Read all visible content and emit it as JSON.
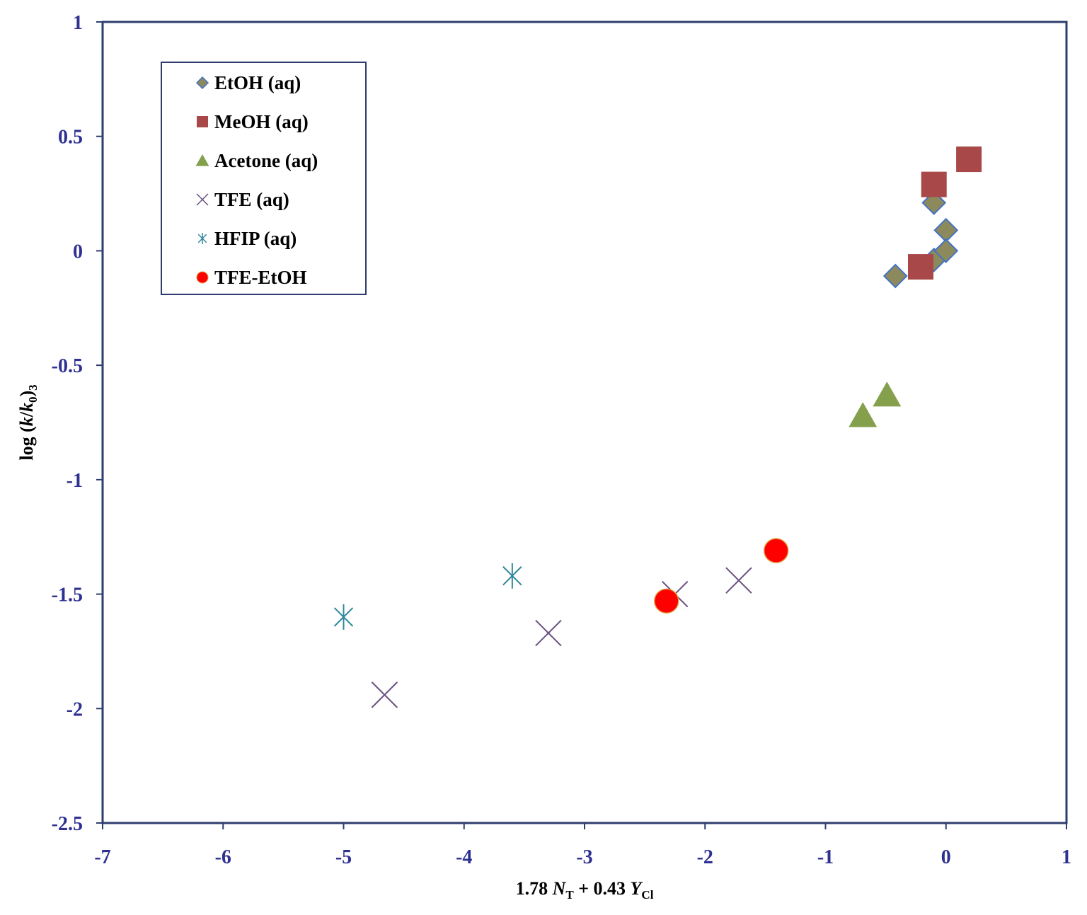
{
  "chart_data": {
    "type": "scatter",
    "title": "",
    "xlabel": {
      "prefix": "1.78 ",
      "var1": "N",
      "sub1": "T",
      "mid": " + 0.43 ",
      "var2": "Y",
      "sub2": "Cl"
    },
    "ylabel": {
      "prefix": "log (",
      "var1": "k",
      "slash": "/",
      "var2": "k",
      "sub2": "0",
      "suffix": ")",
      "sub3": "3"
    },
    "xlim": [
      -7,
      1
    ],
    "ylim": [
      -2.5,
      1
    ],
    "xticks": [
      -7,
      -6,
      -5,
      -4,
      -3,
      -2,
      -1,
      0,
      1
    ],
    "yticks": [
      1,
      0.5,
      0,
      -0.5,
      -1,
      -1.5,
      -2,
      -2.5
    ],
    "xtick_labels": [
      "-7",
      "-6",
      "-5",
      "-4",
      "-3",
      "-2",
      "-1",
      "0",
      "1"
    ],
    "ytick_labels": [
      "1",
      "0.5",
      "0",
      "-0.5",
      "-1",
      "-1.5",
      "-2",
      "-2.5"
    ],
    "grid": false,
    "legend_position": "top-left",
    "series": [
      {
        "name": "EtOH (aq)",
        "marker": "diamond",
        "color": "#8C8A5C",
        "edge": "#4472C4",
        "points": [
          [
            -0.1,
            0.21
          ],
          [
            -0.1,
            -0.04
          ],
          [
            0.0,
            0.09
          ],
          [
            0.0,
            0.0
          ],
          [
            -0.42,
            -0.11
          ]
        ]
      },
      {
        "name": "MeOH (aq)",
        "marker": "square",
        "color": "#A84848",
        "edge": "#A84848",
        "points": [
          [
            -0.1,
            0.29
          ],
          [
            0.19,
            0.4
          ],
          [
            -0.21,
            -0.07
          ]
        ]
      },
      {
        "name": "Acetone (aq)",
        "marker": "triangle",
        "color": "#84A04C",
        "edge": "#84A04C",
        "points": [
          [
            -0.69,
            -0.72
          ],
          [
            -0.49,
            -0.63
          ]
        ]
      },
      {
        "name": "TFE (aq)",
        "marker": "x",
        "color": "#6A5080",
        "edge": "#6A5080",
        "points": [
          [
            -4.66,
            -1.94
          ],
          [
            -3.3,
            -1.67
          ],
          [
            -2.25,
            -1.5
          ],
          [
            -1.72,
            -1.44
          ]
        ]
      },
      {
        "name": "HFIP (aq)",
        "marker": "asterisk",
        "color": "#31889C",
        "edge": "#31889C",
        "points": [
          [
            -5.0,
            -1.6
          ],
          [
            -3.6,
            -1.42
          ]
        ]
      },
      {
        "name": "TFE-EtOH",
        "marker": "circle",
        "color": "#FF0000",
        "edge": "#E0A040",
        "points": [
          [
            -2.32,
            -1.53
          ],
          [
            -1.41,
            -1.31
          ]
        ]
      }
    ]
  }
}
